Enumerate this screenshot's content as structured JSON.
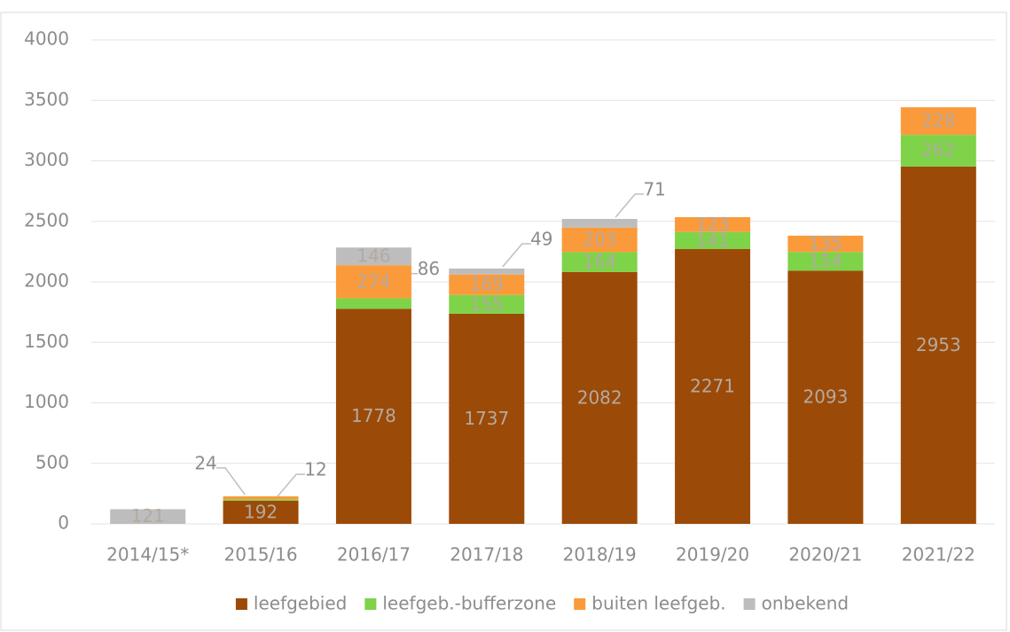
{
  "chart_data": {
    "type": "bar",
    "stacked": true,
    "categories": [
      "2014/15*",
      "2015/16",
      "2016/17",
      "2017/18",
      "2018/19",
      "2019/20",
      "2020/21",
      "2021/22"
    ],
    "series": [
      {
        "name": "leefgebied",
        "color": "#9c4a08",
        "values": [
          null,
          192,
          1778,
          1737,
          2082,
          2271,
          2093,
          2953
        ]
      },
      {
        "name": "leefgeb.-bufferzone",
        "color": "#7ed348",
        "values": [
          null,
          12,
          86,
          155,
          164,
          141,
          154,
          262
        ]
      },
      {
        "name": "buiten leefgeb.",
        "color": "#fb9a3a",
        "values": [
          null,
          24,
          274,
          169,
          203,
          123,
          135,
          228
        ]
      },
      {
        "name": "onbekend",
        "color": "#bdbdbd",
        "values": [
          121,
          null,
          146,
          49,
          71,
          null,
          null,
          null
        ]
      }
    ],
    "ylim": [
      0,
      4000
    ],
    "yticks": [
      0,
      500,
      1000,
      1500,
      2000,
      2500,
      3000,
      3500,
      4000
    ],
    "grid": true,
    "legend": "bottom"
  }
}
